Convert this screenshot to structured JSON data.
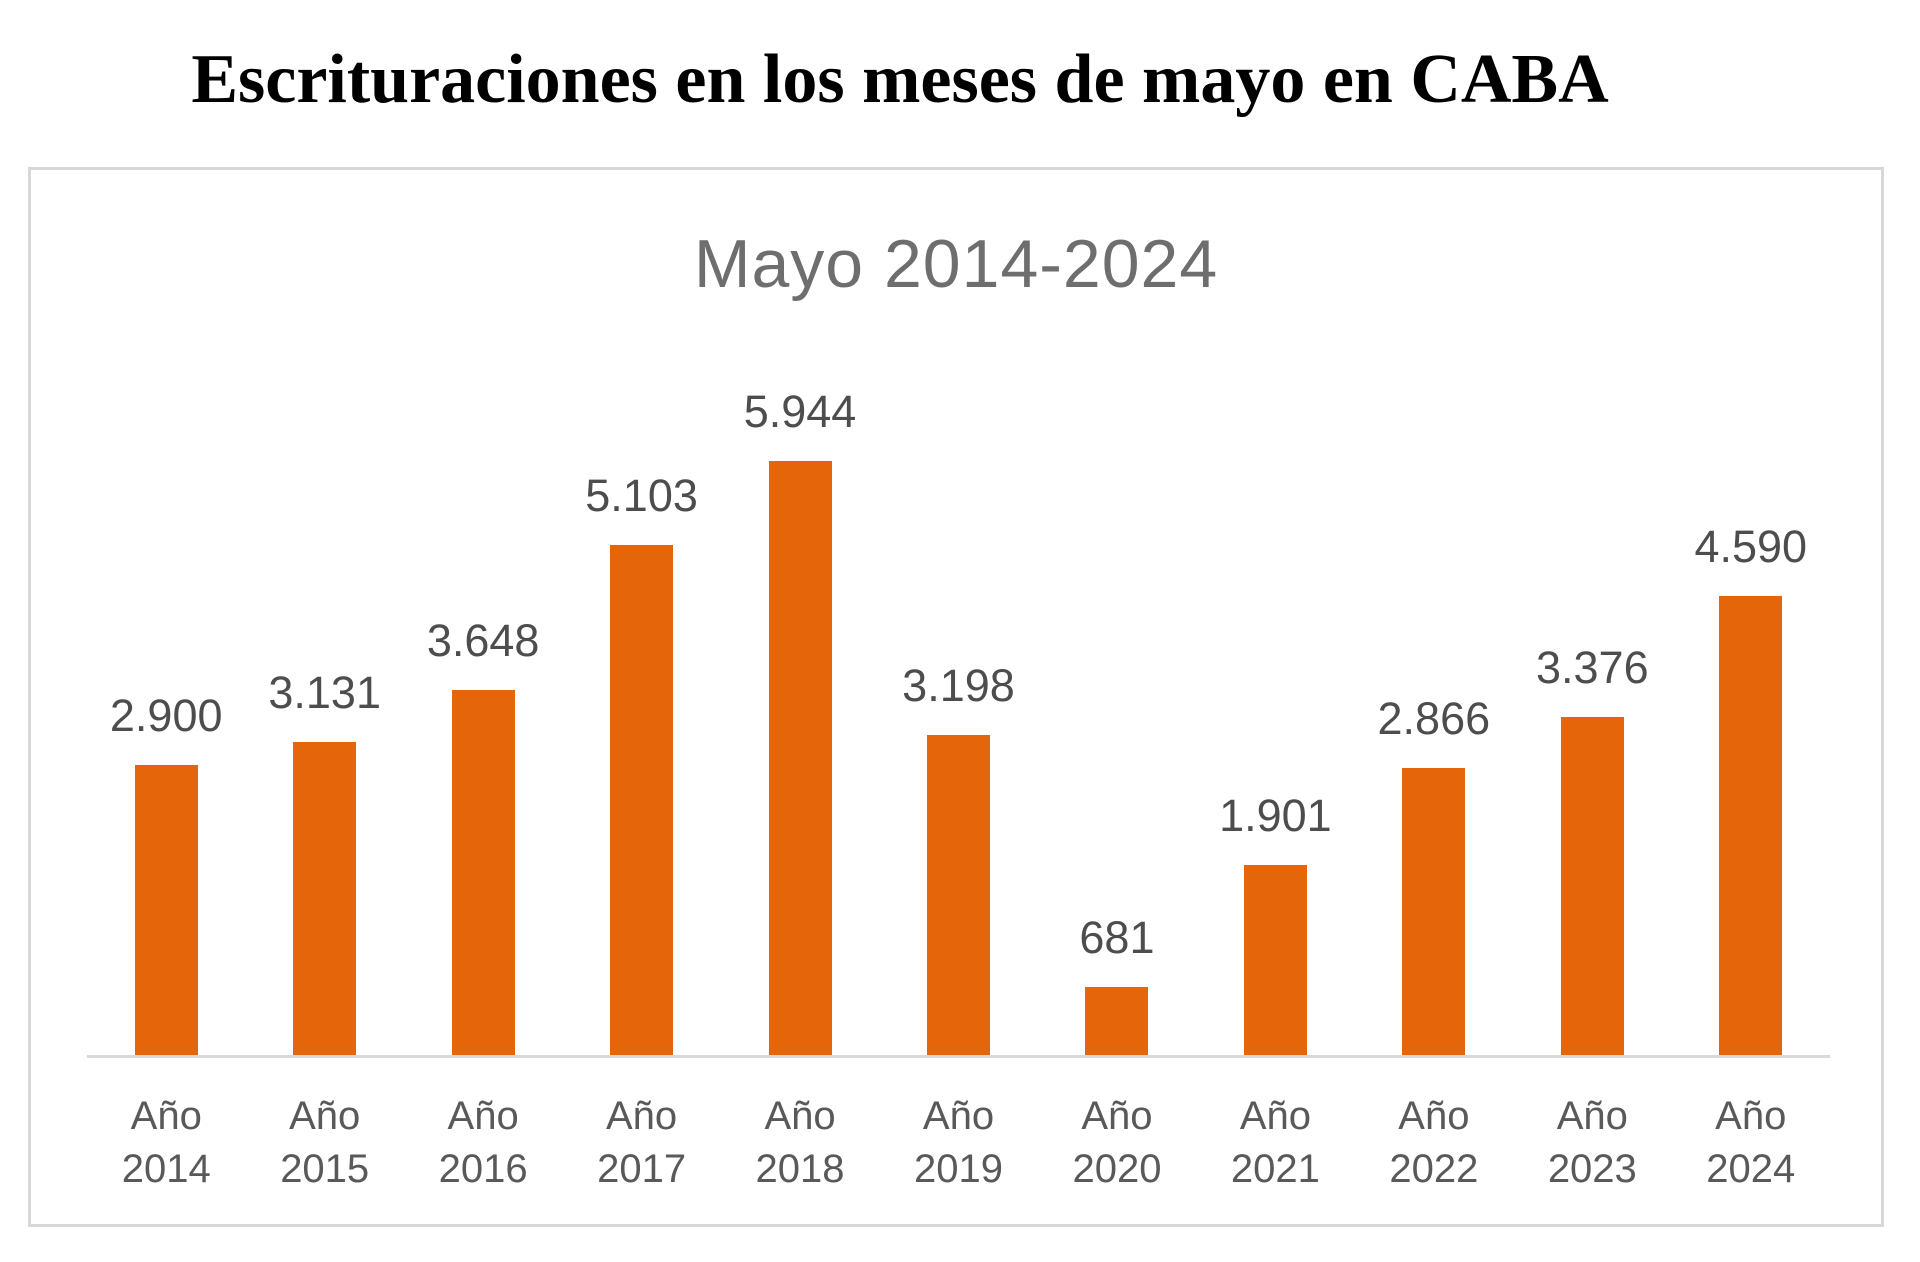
{
  "main_title": "Escrituraciones en los meses de mayo en CABA",
  "chart_data": {
    "type": "bar",
    "title": "Mayo 2014-2024",
    "categories": [
      "Año 2014",
      "Año 2015",
      "Año 2016",
      "Año 2017",
      "Año 2018",
      "Año 2019",
      "Año 2020",
      "Año 2021",
      "Año 2022",
      "Año 2023",
      "Año 2024"
    ],
    "values": [
      2900,
      3131,
      3648,
      5103,
      5944,
      3198,
      681,
      1901,
      2866,
      3376,
      4590
    ],
    "value_labels": [
      "2.900",
      "3.131",
      "3.648",
      "5.103",
      "5.944",
      "3.198",
      "681",
      "1.901",
      "2.866",
      "3.376",
      "4.590"
    ],
    "xlabel": "",
    "ylabel": "",
    "ylim": [
      0,
      6500
    ],
    "grid": false,
    "legend": false,
    "bar_color": "#e5660a",
    "value_label_color": "#4d4d4d",
    "axis_label_color": "#595959",
    "axis_line_color": "#d9d9d9",
    "title_color": "#6e6e6e"
  }
}
